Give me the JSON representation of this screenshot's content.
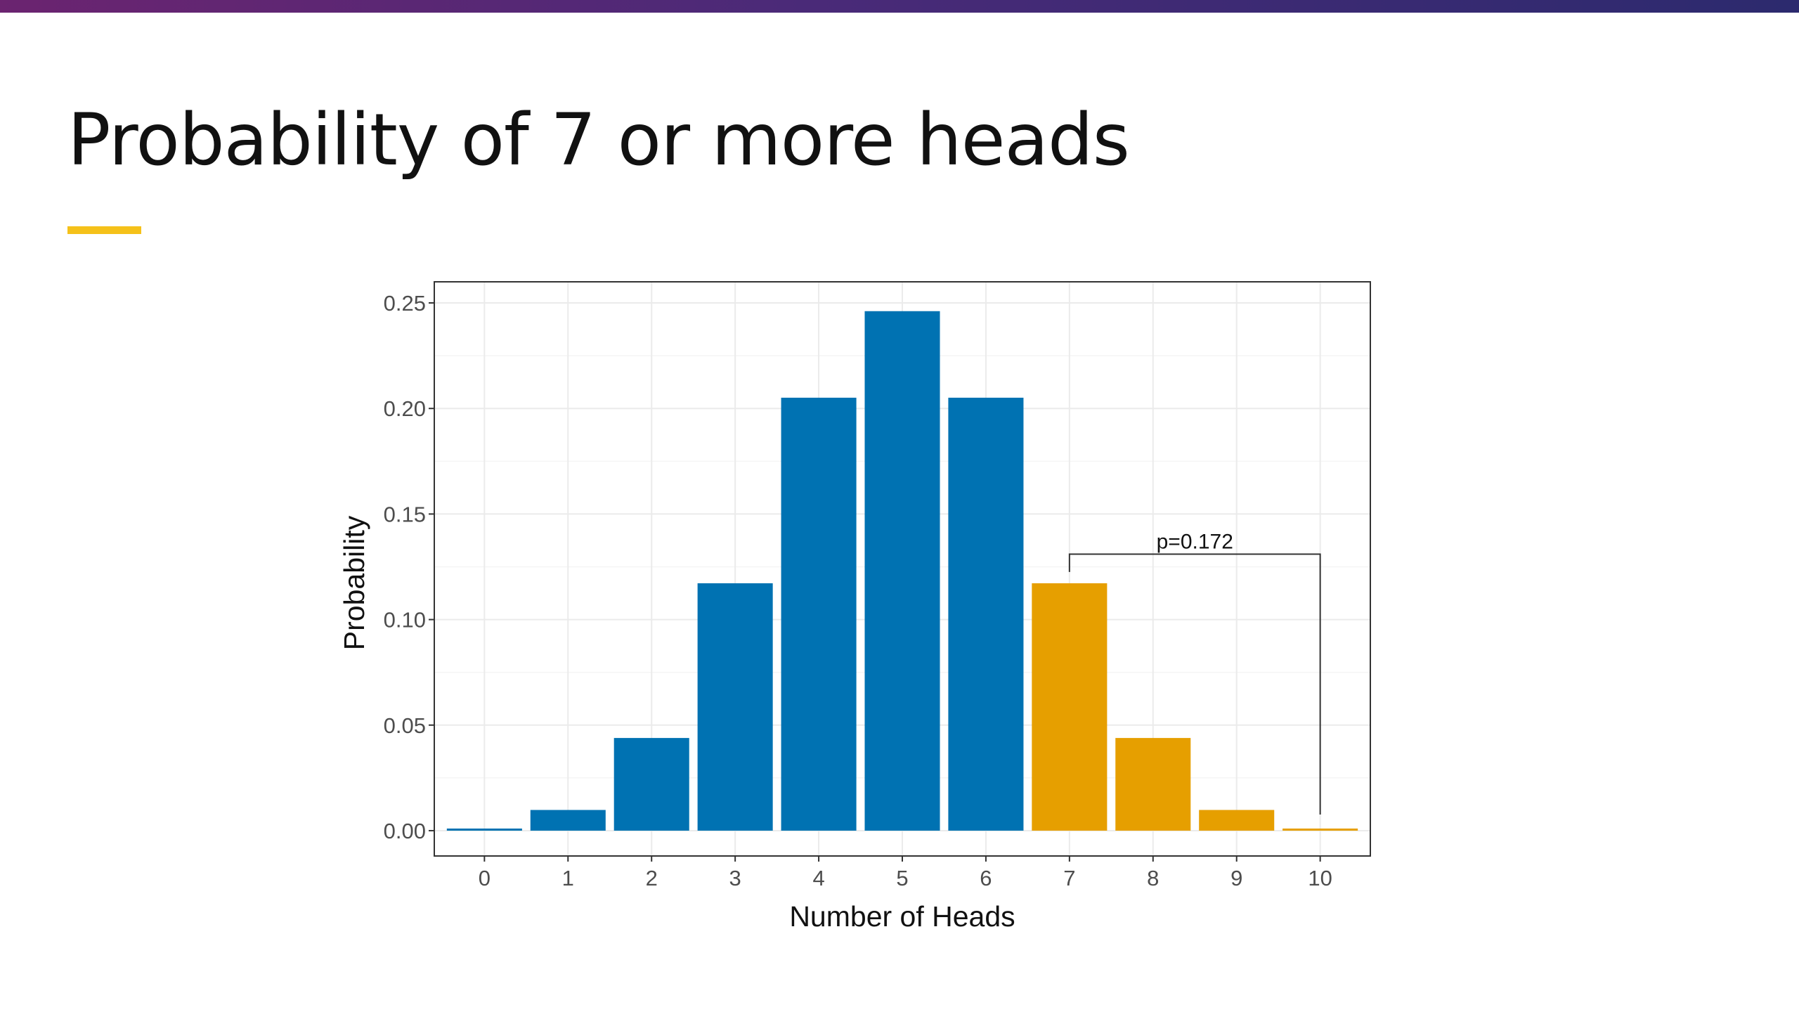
{
  "slide": {
    "title": "Probability of 7 or more heads",
    "accent_color": "#f5c11a",
    "band_colors": [
      "#6b2470",
      "#2c2a6e"
    ]
  },
  "chart_data": {
    "type": "bar",
    "xlabel": "Number of Heads",
    "ylabel": "Probability",
    "categories": [
      "0",
      "1",
      "2",
      "3",
      "4",
      "5",
      "6",
      "7",
      "8",
      "9",
      "10"
    ],
    "values": [
      0.001,
      0.0098,
      0.0439,
      0.1172,
      0.2051,
      0.2461,
      0.2051,
      0.1172,
      0.0439,
      0.0098,
      0.001
    ],
    "highlight_from": 7,
    "colors": {
      "base": "#0072b2",
      "highlight": "#e69f00"
    },
    "ylim": [
      -0.012,
      0.26
    ],
    "yticks": [
      "0.00",
      "0.05",
      "0.10",
      "0.15",
      "0.20",
      "0.25"
    ],
    "grid": true,
    "annotation": {
      "label": "p=0.172",
      "from": "7",
      "to": "10",
      "y": 0.131
    }
  }
}
